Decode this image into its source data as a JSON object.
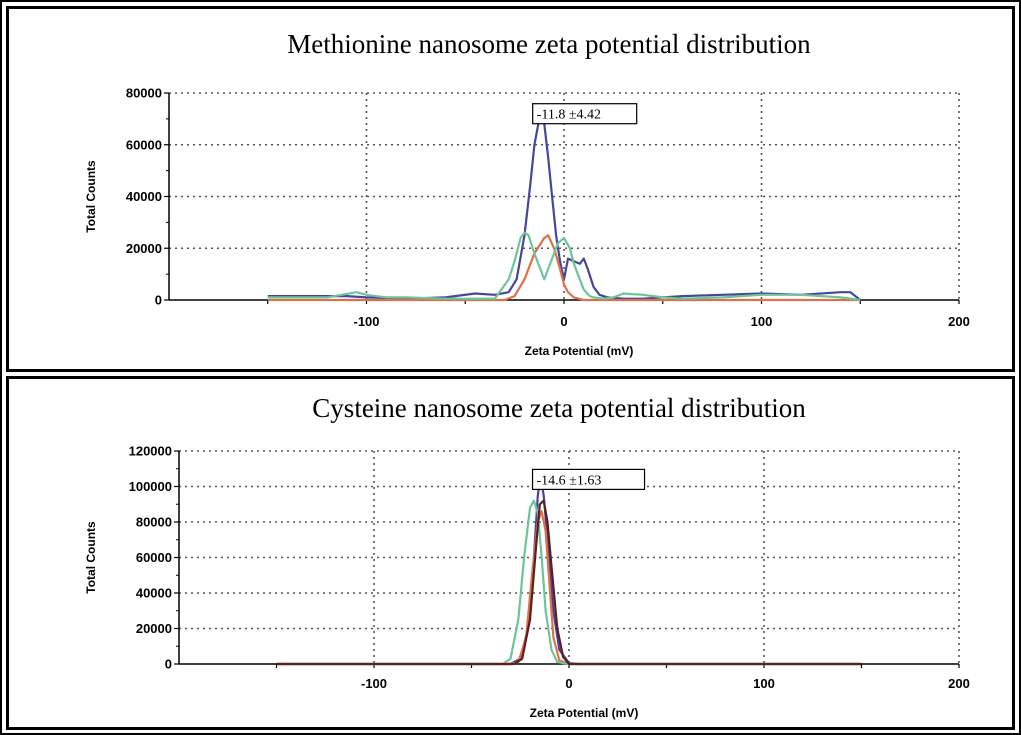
{
  "chart_data": [
    {
      "type": "line",
      "title": "Methionine nanosome zeta potential distribution",
      "xlabel": "Zeta Potential (mV)",
      "ylabel": "Total Counts",
      "xlim": [
        -200,
        200
      ],
      "ylim": [
        0,
        80000
      ],
      "xticks": [
        -100,
        0,
        100,
        200
      ],
      "yticks": [
        0,
        20000,
        40000,
        60000,
        80000
      ],
      "grid": true,
      "annotation": {
        "text": "-11.8 ±4.42",
        "x": -11.8,
        "y": 72000
      },
      "colors": [
        "#46469a",
        "#e0704a",
        "#6ec49a"
      ],
      "series": [
        {
          "color": "#46469a",
          "x": [
            -150,
            -130,
            -110,
            -100,
            -80,
            -60,
            -45,
            -35,
            -28,
            -24,
            -20,
            -17,
            -15,
            -13,
            -12,
            -11,
            -10,
            -8,
            -6,
            -4,
            -2,
            0,
            2,
            5,
            8,
            10,
            12,
            15,
            18,
            22,
            30,
            40,
            60,
            80,
            100,
            120,
            140,
            145,
            150
          ],
          "y": [
            1500,
            1500,
            1500,
            1000,
            500,
            1000,
            2500,
            2000,
            3000,
            8000,
            25000,
            45000,
            60000,
            68000,
            70000,
            71000,
            68000,
            55000,
            40000,
            25000,
            15000,
            8000,
            16000,
            15000,
            14000,
            16000,
            12000,
            5000,
            2000,
            1000,
            500,
            500,
            1500,
            2000,
            2500,
            2000,
            3000,
            3000,
            0
          ]
        },
        {
          "color": "#e0704a",
          "x": [
            -150,
            -60,
            -40,
            -30,
            -25,
            -20,
            -15,
            -10,
            -8,
            -5,
            -2,
            0,
            2,
            5,
            10,
            20,
            60,
            100,
            150
          ],
          "y": [
            0,
            0,
            0,
            0,
            1500,
            8000,
            18000,
            24000,
            25000,
            20000,
            12000,
            6000,
            3000,
            1000,
            0,
            0,
            0,
            0,
            0
          ]
        },
        {
          "color": "#6ec49a",
          "x": [
            -150,
            -120,
            -105,
            -100,
            -90,
            -80,
            -60,
            -45,
            -35,
            -28,
            -25,
            -22,
            -20,
            -18,
            -15,
            -12,
            -10,
            -8,
            -5,
            -3,
            0,
            3,
            5,
            8,
            10,
            13,
            15,
            20,
            25,
            30,
            40,
            50,
            60,
            80,
            100,
            120,
            140,
            150
          ],
          "y": [
            1000,
            1000,
            3000,
            2000,
            1000,
            1000,
            500,
            500,
            500,
            8000,
            15000,
            24000,
            26000,
            25000,
            18000,
            12000,
            8000,
            12000,
            18000,
            22000,
            24000,
            20000,
            14000,
            8000,
            4000,
            1500,
            1000,
            500,
            1000,
            2500,
            2000,
            1000,
            500,
            1000,
            2000,
            2000,
            1000,
            0
          ]
        }
      ]
    },
    {
      "type": "line",
      "title": "Cysteine nanosome zeta potential distribution",
      "xlabel": "Zeta Potential (mV)",
      "ylabel": "Total Counts",
      "xlim": [
        -200,
        200
      ],
      "ylim": [
        0,
        120000
      ],
      "xticks": [
        -100,
        0,
        100,
        200
      ],
      "yticks": [
        0,
        20000,
        40000,
        60000,
        80000,
        100000,
        120000
      ],
      "grid": true,
      "annotation": {
        "text": "-14.6 ±1.63",
        "x": -14.6,
        "y": 104000
      },
      "colors": [
        "#46469a",
        "#e0704a",
        "#6ec49a",
        "#5a2020"
      ],
      "series": [
        {
          "color": "#46469a",
          "x": [
            -150,
            -30,
            -25,
            -21,
            -18,
            -16,
            -14.6,
            -13,
            -11,
            -8,
            -5,
            0,
            5,
            150
          ],
          "y": [
            0,
            0,
            3000,
            20000,
            60000,
            95000,
            105000,
            95000,
            70000,
            30000,
            8000,
            500,
            0,
            0
          ]
        },
        {
          "color": "#e0704a",
          "x": [
            -150,
            -30,
            -26,
            -22,
            -19,
            -16,
            -14,
            -12,
            -10,
            -8,
            -5,
            0,
            150
          ],
          "y": [
            0,
            0,
            1000,
            15000,
            50000,
            80000,
            86000,
            75000,
            45000,
            15000,
            2000,
            0,
            0
          ]
        },
        {
          "color": "#6ec49a",
          "x": [
            -150,
            -34,
            -30,
            -26,
            -23,
            -20,
            -18,
            -16,
            -14,
            -12,
            -9,
            -6,
            0,
            150
          ],
          "y": [
            0,
            0,
            3000,
            25000,
            60000,
            88000,
            92000,
            85000,
            60000,
            30000,
            8000,
            1000,
            0,
            0
          ]
        },
        {
          "color": "#5a2020",
          "x": [
            -150,
            -28,
            -24,
            -20,
            -17,
            -15,
            -13,
            -11,
            -9,
            -6,
            -3,
            0,
            150
          ],
          "y": [
            0,
            0,
            3000,
            25000,
            65000,
            90000,
            92000,
            80000,
            55000,
            20000,
            4000,
            0,
            0
          ]
        }
      ]
    }
  ]
}
